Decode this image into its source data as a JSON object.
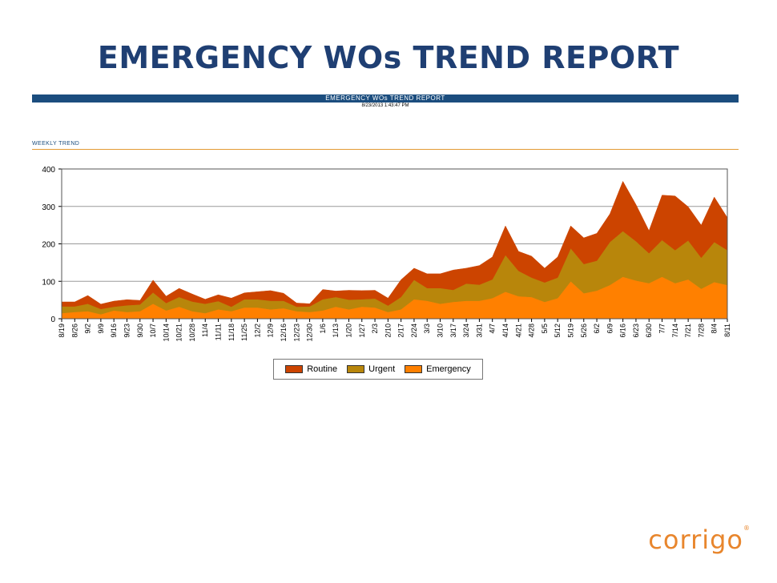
{
  "slide_title": "EMERGENCY WOs TREND REPORT",
  "report": {
    "header": "EMERGENCY WOs TREND REPORT",
    "timestamp": "8/23/2013 1:43:47 PM",
    "section": "WEEKLY TREND"
  },
  "brand": "corrigo",
  "chart_data": {
    "type": "area",
    "stacked": true,
    "title": "",
    "xlabel": "",
    "ylabel": "",
    "ylim": [
      0,
      400
    ],
    "yticks": [
      0,
      100,
      200,
      300,
      400
    ],
    "grid": true,
    "legend_position": "bottom",
    "categories": [
      "8/19",
      "8/26",
      "9/2",
      "9/9",
      "9/16",
      "9/23",
      "9/30",
      "10/7",
      "10/14",
      "10/21",
      "10/28",
      "11/4",
      "11/11",
      "11/18",
      "11/25",
      "12/2",
      "12/9",
      "12/16",
      "12/23",
      "12/30",
      "1/6",
      "1/13",
      "1/20",
      "1/27",
      "2/3",
      "2/10",
      "2/17",
      "2/24",
      "3/3",
      "3/10",
      "3/17",
      "3/24",
      "3/31",
      "4/7",
      "4/14",
      "4/21",
      "4/28",
      "5/5",
      "5/12",
      "5/19",
      "5/26",
      "6/2",
      "6/9",
      "6/16",
      "6/23",
      "6/30",
      "7/7",
      "7/14",
      "7/21",
      "7/28",
      "8/4",
      "8/11"
    ],
    "series": [
      {
        "name": "Emergency",
        "color": "#ff8000",
        "values": [
          15,
          18,
          20,
          12,
          22,
          18,
          20,
          40,
          22,
          32,
          20,
          15,
          25,
          20,
          30,
          30,
          25,
          28,
          20,
          18,
          22,
          32,
          25,
          32,
          30,
          18,
          25,
          52,
          48,
          40,
          45,
          48,
          48,
          55,
          72,
          60,
          58,
          45,
          55,
          100,
          68,
          75,
          90,
          112,
          102,
          95,
          112,
          95,
          105,
          80,
          98,
          90
        ]
      },
      {
        "name": "Urgent",
        "color": "#b8860b",
        "values": [
          18,
          15,
          20,
          14,
          10,
          18,
          18,
          30,
          20,
          26,
          26,
          25,
          22,
          12,
          22,
          22,
          23,
          20,
          12,
          15,
          30,
          26,
          26,
          20,
          24,
          17,
          33,
          52,
          34,
          42,
          32,
          46,
          43,
          50,
          98,
          68,
          52,
          52,
          55,
          88,
          78,
          80,
          115,
          122,
          105,
          80,
          98,
          88,
          104,
          83,
          107,
          93
        ]
      },
      {
        "name": "Routine",
        "color": "#cc4400",
        "values": [
          12,
          12,
          22,
          13,
          15,
          15,
          11,
          33,
          18,
          23,
          20,
          12,
          17,
          23,
          17,
          20,
          27,
          20,
          10,
          7,
          26,
          16,
          25,
          23,
          22,
          20,
          46,
          31,
          38,
          38,
          53,
          41,
          51,
          60,
          78,
          52,
          57,
          38,
          55,
          60,
          70,
          73,
          75,
          133,
          98,
          60,
          120,
          145,
          90,
          87,
          120,
          87
        ]
      }
    ]
  }
}
